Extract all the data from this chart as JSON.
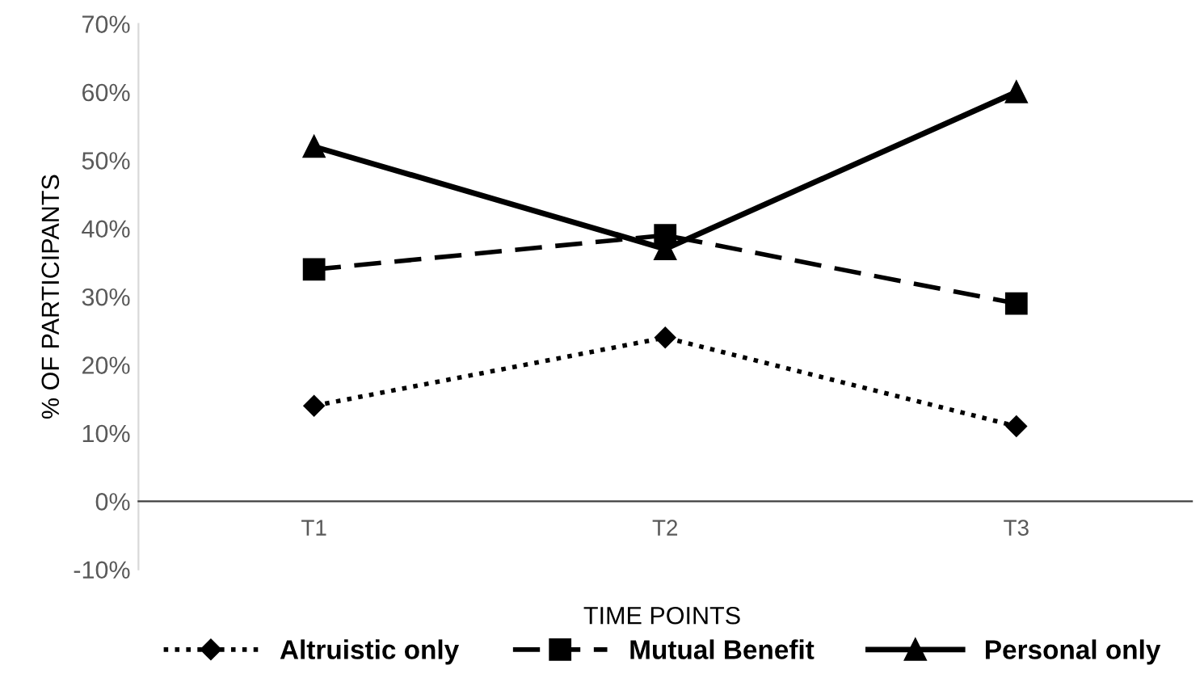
{
  "chart_data": {
    "type": "line",
    "xlabel": "TIME POINTS",
    "ylabel": "% OF PARTICIPANTS",
    "categories": [
      "T1",
      "T2",
      "T3"
    ],
    "series": [
      {
        "name": "Altruistic only",
        "color": "#000000",
        "values": [
          14,
          24,
          11
        ],
        "marker": "diamond",
        "line_style": "dotted"
      },
      {
        "name": "Mutual Benefit",
        "color": "#000000",
        "values": [
          34,
          39,
          29
        ],
        "marker": "square",
        "line_style": "dashed"
      },
      {
        "name": "Personal only",
        "color": "#000000",
        "values": [
          52,
          37,
          60
        ],
        "marker": "triangle",
        "line_style": "solid"
      }
    ],
    "ylim": [
      -10,
      70
    ],
    "yticks": [
      {
        "value": -10,
        "label": "-10%"
      },
      {
        "value": 0,
        "label": "0%"
      },
      {
        "value": 10,
        "label": "10%"
      },
      {
        "value": 20,
        "label": "20%"
      },
      {
        "value": 30,
        "label": "30%"
      },
      {
        "value": 40,
        "label": "40%"
      },
      {
        "value": 50,
        "label": "50%"
      },
      {
        "value": 60,
        "label": "60%"
      },
      {
        "value": 70,
        "label": "70%"
      }
    ],
    "grid": false,
    "legend": "bottom"
  }
}
